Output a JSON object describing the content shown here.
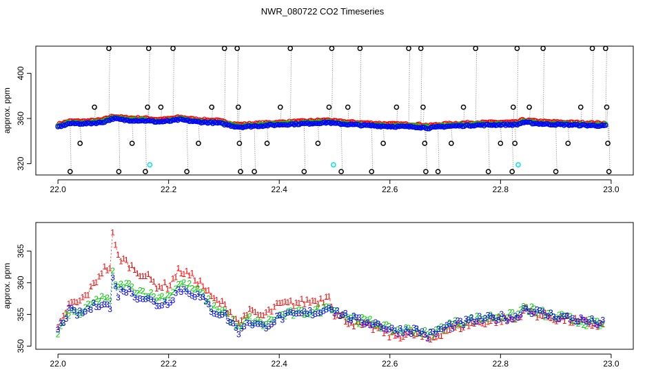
{
  "title": "NWR_080722  CO2 Timeseries",
  "colors": {
    "frame": "#000000",
    "series1": "#ff0000",
    "series2": "#00cc00",
    "series3": "#0000ff",
    "outlier": "#000000",
    "flag": "#00e5e5",
    "connector": "#999999"
  },
  "chart_data": [
    {
      "type": "scatter",
      "ylabel": "approx. ppm",
      "xlim": [
        21.96,
        23.04
      ],
      "ylim": [
        310,
        424
      ],
      "xticks": [
        22.0,
        22.2,
        22.4,
        22.6,
        22.8,
        23.0
      ],
      "xtick_labels": [
        "22.0",
        "22.2",
        "22.4",
        "22.6",
        "22.8",
        "23.0"
      ],
      "yticks": [
        320,
        360,
        400
      ],
      "ytick_labels": [
        "320",
        "360",
        "400"
      ],
      "series": [
        {
          "name": "1",
          "color": "#ff0000",
          "offset": 2.0
        },
        {
          "name": "2",
          "color": "#00cc00",
          "offset": 0.6
        },
        {
          "name": "3",
          "color": "#0000ff",
          "offset": 0.0
        }
      ],
      "baseline": [
        [
          22.0,
          352.5
        ],
        [
          22.02,
          355.5
        ],
        [
          22.05,
          355.5
        ],
        [
          22.08,
          356.5
        ],
        [
          22.1,
          360.0
        ],
        [
          22.12,
          358.5
        ],
        [
          22.16,
          358.0
        ],
        [
          22.18,
          357.0
        ],
        [
          22.2,
          357.5
        ],
        [
          22.22,
          359.0
        ],
        [
          22.25,
          357.0
        ],
        [
          22.29,
          356.0
        ],
        [
          22.32,
          353.0
        ],
        [
          22.33,
          352.5
        ],
        [
          22.4,
          354.5
        ],
        [
          22.45,
          355.5
        ],
        [
          22.49,
          356.5
        ],
        [
          22.5,
          355.5
        ],
        [
          22.55,
          354.0
        ],
        [
          22.6,
          353.0
        ],
        [
          22.65,
          352.5
        ],
        [
          22.67,
          351.5
        ],
        [
          22.7,
          353.0
        ],
        [
          22.75,
          354.0
        ],
        [
          22.8,
          354.5
        ],
        [
          22.83,
          354.5
        ],
        [
          22.84,
          356.5
        ],
        [
          22.88,
          355.0
        ],
        [
          22.95,
          354.0
        ],
        [
          22.99,
          353.5
        ]
      ],
      "outliers": [
        [
          22.022,
          313
        ],
        [
          22.04,
          338
        ],
        [
          22.066,
          370
        ],
        [
          22.092,
          422
        ],
        [
          22.11,
          313
        ],
        [
          22.134,
          338
        ],
        [
          22.158,
          313
        ],
        [
          22.162,
          370
        ],
        [
          22.164,
          422
        ],
        [
          22.186,
          370
        ],
        [
          22.208,
          422
        ],
        [
          22.233,
          313
        ],
        [
          22.254,
          338
        ],
        [
          22.278,
          370
        ],
        [
          22.301,
          422
        ],
        [
          22.324,
          422
        ],
        [
          22.326,
          370
        ],
        [
          22.328,
          338
        ],
        [
          22.33,
          313
        ],
        [
          22.355,
          313
        ],
        [
          22.378,
          338
        ],
        [
          22.402,
          370
        ],
        [
          22.42,
          422
        ],
        [
          22.445,
          313
        ],
        [
          22.47,
          338
        ],
        [
          22.49,
          370
        ],
        [
          22.495,
          422
        ],
        [
          22.512,
          313
        ],
        [
          22.524,
          370
        ],
        [
          22.546,
          422
        ],
        [
          22.567,
          313
        ],
        [
          22.588,
          338
        ],
        [
          22.612,
          370
        ],
        [
          22.634,
          422
        ],
        [
          22.656,
          422
        ],
        [
          22.66,
          370
        ],
        [
          22.663,
          338
        ],
        [
          22.665,
          313
        ],
        [
          22.687,
          313
        ],
        [
          22.711,
          338
        ],
        [
          22.733,
          370
        ],
        [
          22.755,
          422
        ],
        [
          22.778,
          313
        ],
        [
          22.8,
          338
        ],
        [
          22.821,
          313
        ],
        [
          22.823,
          370
        ],
        [
          22.826,
          338
        ],
        [
          22.83,
          422
        ],
        [
          22.852,
          370
        ],
        [
          22.877,
          422
        ],
        [
          22.9,
          313
        ],
        [
          22.922,
          338
        ],
        [
          22.945,
          370
        ],
        [
          22.966,
          422
        ],
        [
          22.99,
          422
        ],
        [
          22.992,
          370
        ],
        [
          22.994,
          338
        ],
        [
          22.996,
          313
        ]
      ],
      "flags": [
        [
          22.166,
          319
        ],
        [
          22.498,
          319
        ],
        [
          22.832,
          319
        ]
      ]
    },
    {
      "type": "scatter",
      "ylabel": "approx. ppm",
      "xlim": [
        21.96,
        23.04
      ],
      "ylim": [
        349.5,
        369.5
      ],
      "xticks": [
        22.0,
        22.2,
        22.4,
        22.6,
        22.8,
        23.0
      ],
      "xtick_labels": [
        "22.0",
        "22.2",
        "22.4",
        "22.6",
        "22.8",
        "23.0"
      ],
      "yticks": [
        350,
        355,
        360,
        365
      ],
      "ytick_labels": [
        "350",
        "355",
        "360",
        "365"
      ],
      "series": [
        {
          "name": "1",
          "color": "#ff0000"
        },
        {
          "name": "2",
          "color": "#00cc00"
        },
        {
          "name": "3",
          "color": "#0000ff"
        }
      ],
      "baseline": [
        [
          22.0,
          352.5
        ],
        [
          22.02,
          355.5
        ],
        [
          22.04,
          355.0
        ],
        [
          22.06,
          356.0
        ],
        [
          22.08,
          357.0
        ],
        [
          22.094,
          356.0
        ],
        [
          22.1,
          361.5
        ],
        [
          22.106,
          358.0
        ],
        [
          22.12,
          359.0
        ],
        [
          22.14,
          358.0
        ],
        [
          22.16,
          357.5
        ],
        [
          22.18,
          356.5
        ],
        [
          22.2,
          357.0
        ],
        [
          22.22,
          359.0
        ],
        [
          22.24,
          358.5
        ],
        [
          22.26,
          357.5
        ],
        [
          22.28,
          355.5
        ],
        [
          22.3,
          355.0
        ],
        [
          22.33,
          352.0
        ],
        [
          22.34,
          354.0
        ],
        [
          22.37,
          353.0
        ],
        [
          22.4,
          354.5
        ],
        [
          22.44,
          355.0
        ],
        [
          22.48,
          355.5
        ],
        [
          22.49,
          356.5
        ],
        [
          22.5,
          355.5
        ],
        [
          22.54,
          354.0
        ],
        [
          22.58,
          353.5
        ],
        [
          22.6,
          352.5
        ],
        [
          22.65,
          352.5
        ],
        [
          22.67,
          351.5
        ],
        [
          22.7,
          353.0
        ],
        [
          22.75,
          354.0
        ],
        [
          22.8,
          354.5
        ],
        [
          22.83,
          354.5
        ],
        [
          22.84,
          356.0
        ],
        [
          22.88,
          355.0
        ],
        [
          22.95,
          354.0
        ],
        [
          22.99,
          353.5
        ]
      ],
      "offsets": {
        "1": [
          [
            22.0,
            0.0
          ],
          [
            22.06,
            3.0
          ],
          [
            22.1,
            7.0
          ],
          [
            22.12,
            4.5
          ],
          [
            22.2,
            2.5
          ],
          [
            22.22,
            3.0
          ],
          [
            22.3,
            1.5
          ],
          [
            22.35,
            1.5
          ],
          [
            22.4,
            2.0
          ],
          [
            22.49,
            1.8
          ],
          [
            22.5,
            -0.5
          ],
          [
            22.6,
            -0.8
          ],
          [
            22.7,
            -0.5
          ],
          [
            22.8,
            -0.3
          ],
          [
            22.99,
            -0.3
          ]
        ],
        "2": [
          [
            22.0,
            -0.5
          ],
          [
            22.08,
            0.8
          ],
          [
            22.2,
            1.0
          ],
          [
            22.3,
            0.5
          ],
          [
            22.4,
            0.3
          ],
          [
            22.5,
            0.2
          ],
          [
            22.6,
            0.0
          ],
          [
            22.7,
            0.2
          ],
          [
            22.8,
            0.3
          ],
          [
            22.99,
            -0.3
          ]
        ],
        "3": [
          [
            22.0,
            0.0
          ],
          [
            22.99,
            0.0
          ]
        ]
      }
    }
  ]
}
